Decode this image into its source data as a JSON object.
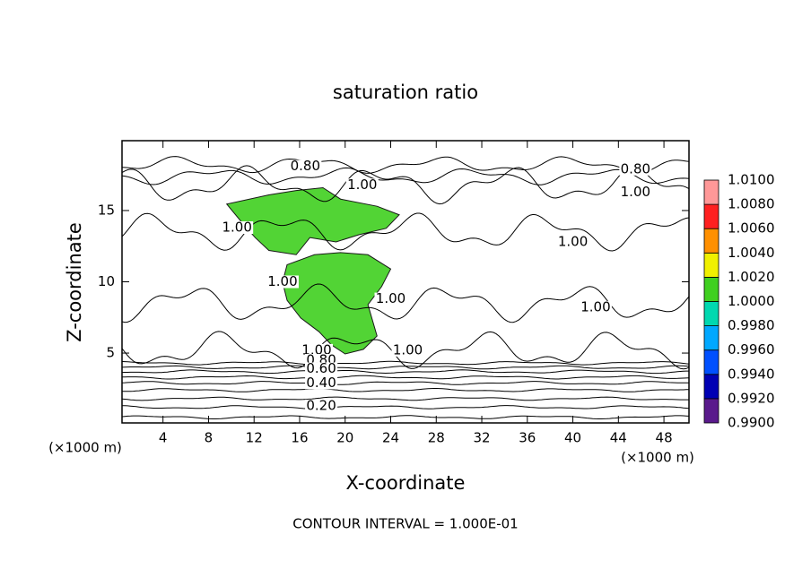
{
  "chart_data": {
    "type": "contour",
    "title": "saturation ratio",
    "x_label": "X-coordinate",
    "y_label": "Z-coordinate",
    "x_unit_labels": [
      "(×1000 m)",
      "(×1000 m)"
    ],
    "footer": "CONTOUR INTERVAL = 1.000E-01",
    "xlim": [
      0.4,
      50.2
    ],
    "xticks": [
      4,
      8,
      12,
      16,
      20,
      24,
      28,
      32,
      36,
      40,
      44,
      48
    ],
    "ylim": [
      0.1,
      19.9
    ],
    "yticks": [
      5,
      10,
      15
    ],
    "colorbar": {
      "ticks": [
        {
          "value": 0.99,
          "label": "0.9900"
        },
        {
          "value": 0.992,
          "label": "0.9920"
        },
        {
          "value": 0.994,
          "label": "0.9940"
        },
        {
          "value": 0.996,
          "label": "0.9960"
        },
        {
          "value": 0.998,
          "label": "0.9980"
        },
        {
          "value": 1.0,
          "label": "1.0000"
        },
        {
          "value": 1.002,
          "label": "1.0020"
        },
        {
          "value": 1.004,
          "label": "1.0040"
        },
        {
          "value": 1.006,
          "label": "1.0060"
        },
        {
          "value": 1.008,
          "label": "1.0080"
        },
        {
          "value": 1.01,
          "label": "1.0100"
        }
      ],
      "colors": [
        "#5a1a8c",
        "#0000b4",
        "#0050ff",
        "#00a8ff",
        "#00d8b0",
        "#40d020",
        "#f0f000",
        "#ff9000",
        "#ff2020",
        "#ff9898"
      ]
    },
    "contours": [
      {
        "level": 0.1,
        "y": 0.5
      },
      {
        "level": 0.2,
        "y": 1.2
      },
      {
        "level": 0.3,
        "y": 1.8
      },
      {
        "level": 0.4,
        "y": 2.4
      },
      {
        "level": 0.5,
        "y": 2.9
      },
      {
        "level": 0.6,
        "y": 3.3
      },
      {
        "level": 0.7,
        "y": 3.7
      },
      {
        "level": 0.8,
        "y": 4.0
      },
      {
        "level": 0.9,
        "y": 4.3
      },
      {
        "level": 1.0,
        "y": 5.2
      },
      {
        "level": 1.0,
        "y": 8.5
      },
      {
        "level": 1.0,
        "y": 13.5
      },
      {
        "level": 1.0,
        "y": 16.8
      },
      {
        "level": 0.9,
        "y": 17.4
      },
      {
        "level": 0.8,
        "y": 18.2
      }
    ],
    "contour_labels": [
      {
        "value": 0.8,
        "label": "0.80",
        "x": 16.5,
        "y": 18.1
      },
      {
        "value": 0.8,
        "label": "0.80",
        "x": 45.5,
        "y": 17.9
      },
      {
        "value": 1.0,
        "label": "1.00",
        "x": 21.5,
        "y": 16.8
      },
      {
        "value": 1.0,
        "label": "1.00",
        "x": 45.5,
        "y": 16.3
      },
      {
        "value": 1.0,
        "label": "1.00",
        "x": 10.5,
        "y": 13.8
      },
      {
        "value": 1.0,
        "label": "1.00",
        "x": 40.0,
        "y": 12.8
      },
      {
        "value": 1.0,
        "label": "1.00",
        "x": 14.5,
        "y": 10.0
      },
      {
        "value": 1.0,
        "label": "1.00",
        "x": 24.0,
        "y": 8.8
      },
      {
        "value": 1.0,
        "label": "1.00",
        "x": 42.0,
        "y": 8.2
      },
      {
        "value": 1.0,
        "label": "1.00",
        "x": 17.5,
        "y": 5.2
      },
      {
        "value": 1.0,
        "label": "1.00",
        "x": 25.5,
        "y": 5.2
      },
      {
        "value": 0.8,
        "label": "0.80",
        "x": 17.9,
        "y": 4.5
      },
      {
        "value": 0.6,
        "label": "0.60",
        "x": 17.9,
        "y": 3.9
      },
      {
        "value": 0.4,
        "label": "0.40",
        "x": 17.9,
        "y": 2.9
      },
      {
        "value": 0.2,
        "label": "0.20",
        "x": 17.9,
        "y": 1.3
      }
    ],
    "regions": [
      {
        "value": 1.0005,
        "x": [
          9.6,
          13.3,
          15.7,
          18.05,
          19.6,
          22.8,
          24.75,
          23.6,
          21.2,
          19.2,
          16.9,
          15.7,
          13.3,
          12.1,
          11.0
        ],
        "y": [
          15.45,
          16.1,
          16.4,
          16.6,
          15.8,
          15.3,
          14.7,
          13.75,
          13.3,
          12.8,
          13.1,
          11.9,
          12.2,
          13.1,
          14.1
        ]
      },
      {
        "value": 1.0005,
        "x": [
          14.9,
          17.3,
          19.6,
          22.0,
          24.0,
          23.2,
          22.0,
          22.8,
          21.6,
          20.0,
          18.8,
          17.7,
          16.1,
          14.9,
          14.5
        ],
        "y": [
          11.2,
          11.9,
          12.05,
          11.9,
          10.9,
          9.66,
          8.4,
          6.2,
          5.26,
          4.94,
          5.57,
          6.5,
          7.46,
          8.7,
          9.97
        ]
      }
    ]
  }
}
